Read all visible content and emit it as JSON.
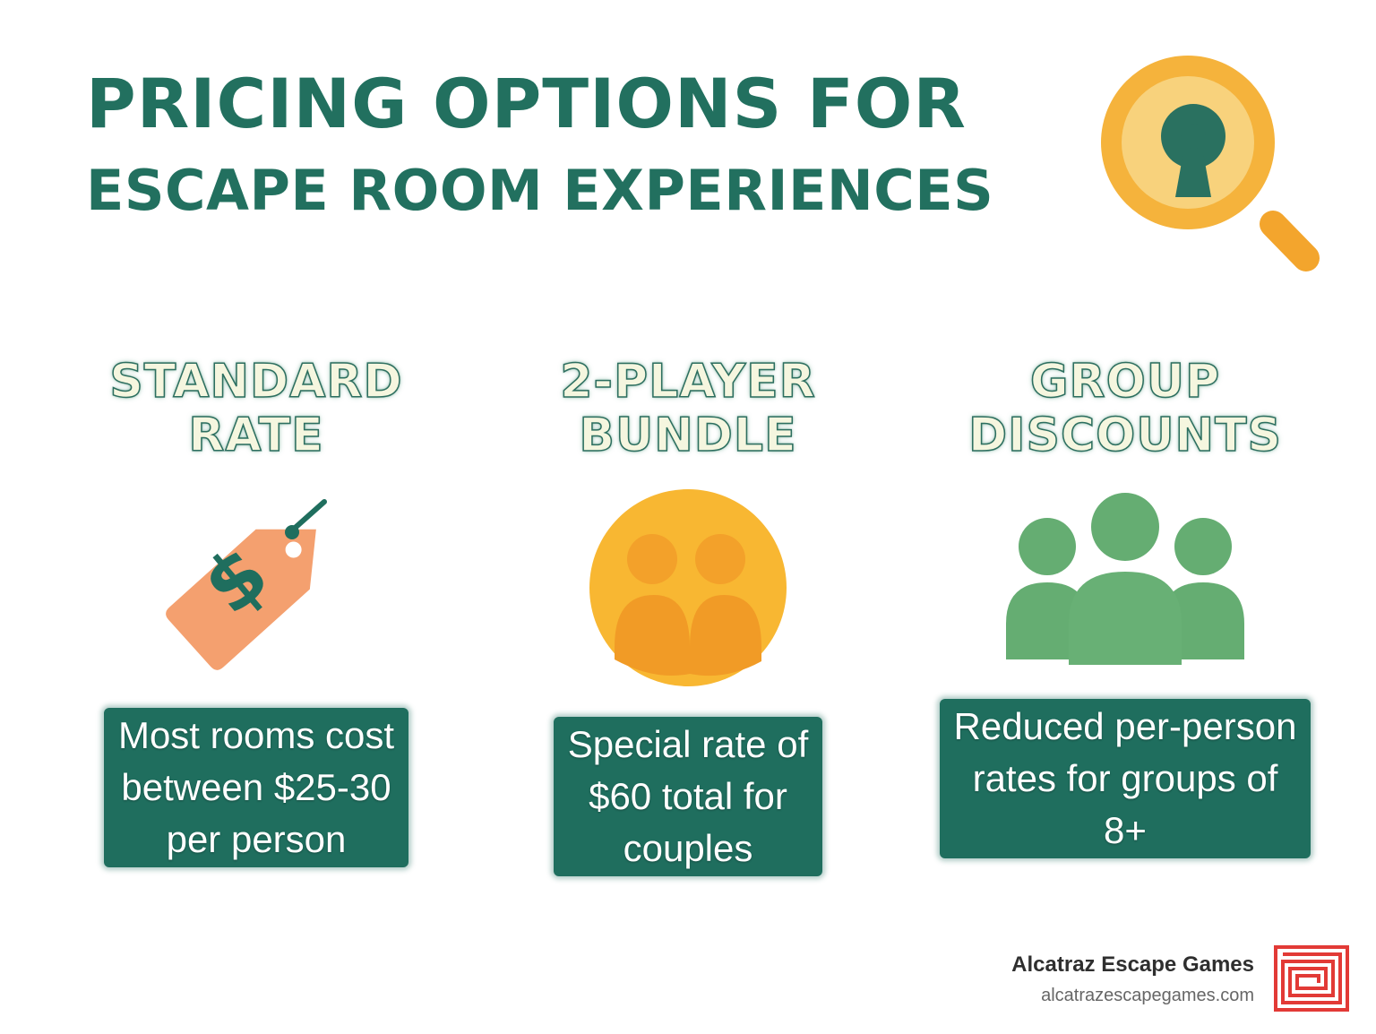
{
  "title": {
    "line1": "PRICING OPTIONS FOR",
    "line2": "ESCAPE ROOM EXPERIENCES"
  },
  "header_icon": "magnifier-keyhole-icon",
  "options": [
    {
      "heading_line1": "STANDARD",
      "heading_line2": "RATE",
      "icon": "price-tag-dollar-icon",
      "desc_line1": "Most rooms cost",
      "desc_line2": "between $25-30",
      "desc_line3": "per person"
    },
    {
      "heading_line1": "2-PLAYER",
      "heading_line2": "BUNDLE",
      "icon": "two-people-icon",
      "desc_line1": "Special rate of",
      "desc_line2": "$60 total for",
      "desc_line3": "couples"
    },
    {
      "heading_line1": "GROUP",
      "heading_line2": "DISCOUNTS",
      "icon": "group-people-icon",
      "desc_line1": "Reduced per-person",
      "desc_line2": "rates for groups of",
      "desc_line3": "8+"
    }
  ],
  "brand": {
    "name": "Alcatraz Escape Games",
    "url": "alcatrazescapegames.com",
    "logo_icon": "maze-logo-icon"
  },
  "colors": {
    "title": "#22705f",
    "heading_fill": "#f5f6df",
    "desc_background": "#1f6e5e",
    "tag": "#f4a06f",
    "bundle_circle": "#f8b732",
    "group_people": "#65ad72",
    "logo": "#e23a36"
  }
}
